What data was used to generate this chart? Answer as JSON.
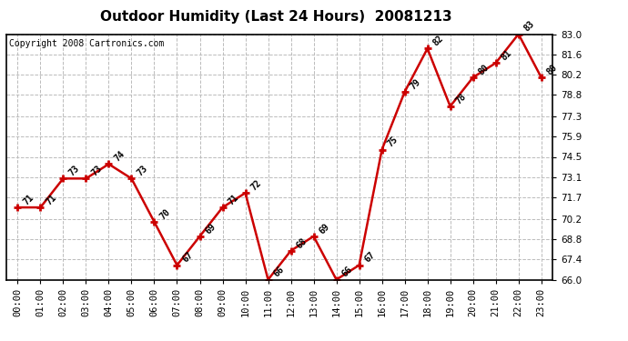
{
  "title": "Outdoor Humidity (Last 24 Hours)  20081213",
  "copyright": "Copyright 2008 Cartronics.com",
  "hours": [
    "00:00",
    "01:00",
    "02:00",
    "03:00",
    "04:00",
    "05:00",
    "06:00",
    "07:00",
    "08:00",
    "09:00",
    "10:00",
    "11:00",
    "12:00",
    "13:00",
    "14:00",
    "15:00",
    "16:00",
    "17:00",
    "18:00",
    "19:00",
    "20:00",
    "21:00",
    "22:00",
    "23:00"
  ],
  "values": [
    71,
    71,
    73,
    73,
    74,
    73,
    70,
    67,
    69,
    71,
    72,
    66,
    68,
    69,
    66,
    67,
    75,
    79,
    82,
    78,
    80,
    81,
    83,
    80
  ],
  "ylim_min": 66.0,
  "ylim_max": 83.0,
  "yticks": [
    66.0,
    67.4,
    68.8,
    70.2,
    71.7,
    73.1,
    74.5,
    75.9,
    77.3,
    78.8,
    80.2,
    81.6,
    83.0
  ],
  "line_color": "#cc0000",
  "marker_color": "#cc0000",
  "bg_color": "#ffffff",
  "plot_bg_color": "#ffffff",
  "grid_color": "#bbbbbb",
  "title_fontsize": 11,
  "copyright_fontsize": 7,
  "label_fontsize": 7,
  "tick_fontsize": 7.5
}
